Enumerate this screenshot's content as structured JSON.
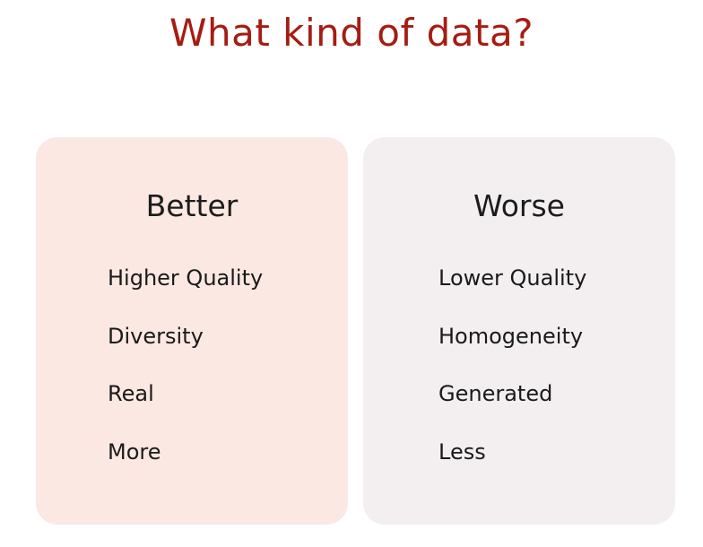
{
  "title": "What kind of data?",
  "colors": {
    "title": "#a61c12",
    "better_card_bg": "#fbe8e2",
    "worse_card_bg": "#f3eff0",
    "text": "#1a1a1a"
  },
  "better": {
    "heading": "Better",
    "items": [
      "Higher Quality",
      "Diversity",
      "Real",
      "More"
    ]
  },
  "worse": {
    "heading": "Worse",
    "items": [
      "Lower Quality",
      "Homogeneity",
      "Generated",
      "Less"
    ]
  }
}
